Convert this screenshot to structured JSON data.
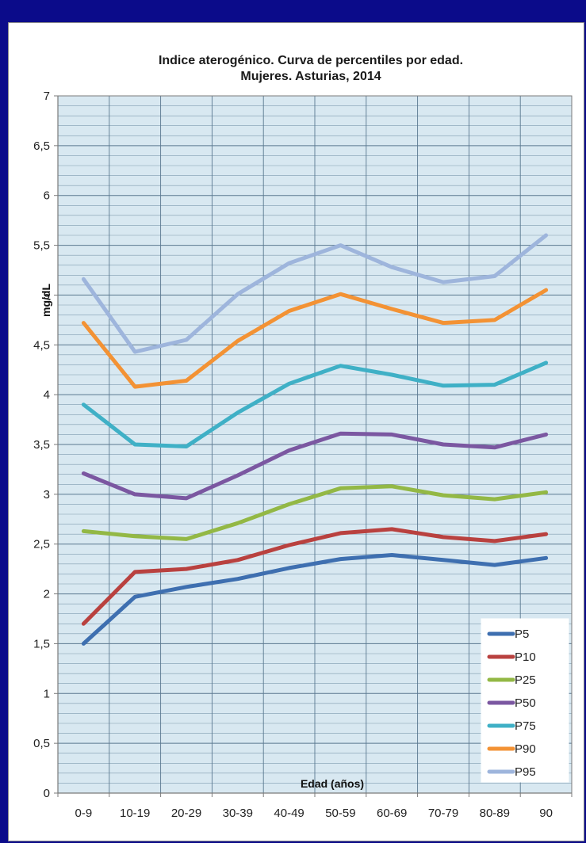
{
  "chart_data": {
    "type": "line",
    "title": "Indice aterogénico. Curva de percentiles por edad.",
    "subtitle": "Mujeres. Asturias, 2014",
    "xlabel": "Edad (años)",
    "ylabel": "mg/dL",
    "categories": [
      "0-9",
      "10-19",
      "20-29",
      "30-39",
      "40-49",
      "50-59",
      "60-69",
      "70-79",
      "80-89",
      "90"
    ],
    "ylim": [
      0,
      7
    ],
    "yticks": [
      "0",
      "0,5",
      "1",
      "1,5",
      "2",
      "2,5",
      "3",
      "3,5",
      "4",
      "4,5",
      "5",
      "5,5",
      "6",
      "6,5",
      "7"
    ],
    "grid": true,
    "legend_position": "bottom-right",
    "series": [
      {
        "name": "P5",
        "color": "#3e6fb0",
        "values": [
          1.5,
          1.97,
          2.07,
          2.15,
          2.26,
          2.35,
          2.39,
          2.34,
          2.29,
          2.36
        ]
      },
      {
        "name": "P10",
        "color": "#b9413f",
        "values": [
          1.7,
          2.22,
          2.25,
          2.34,
          2.49,
          2.61,
          2.65,
          2.57,
          2.53,
          2.6
        ]
      },
      {
        "name": "P25",
        "color": "#93b845",
        "values": [
          2.63,
          2.58,
          2.55,
          2.71,
          2.9,
          3.06,
          3.08,
          2.99,
          2.95,
          3.02
        ]
      },
      {
        "name": "P50",
        "color": "#7b57a1",
        "values": [
          3.21,
          3.0,
          2.96,
          3.19,
          3.44,
          3.61,
          3.6,
          3.5,
          3.47,
          3.6
        ]
      },
      {
        "name": "P75",
        "color": "#3fb0c6",
        "values": [
          3.9,
          3.5,
          3.48,
          3.82,
          4.11,
          4.29,
          4.2,
          4.09,
          4.1,
          4.32
        ]
      },
      {
        "name": "P90",
        "color": "#f39234",
        "values": [
          4.72,
          4.08,
          4.14,
          4.54,
          4.84,
          5.01,
          4.86,
          4.72,
          4.75,
          5.05
        ]
      },
      {
        "name": "P95",
        "color": "#9eb5dc",
        "values": [
          5.16,
          4.43,
          4.55,
          5.01,
          5.32,
          5.5,
          5.28,
          5.13,
          5.19,
          5.6
        ]
      }
    ]
  }
}
